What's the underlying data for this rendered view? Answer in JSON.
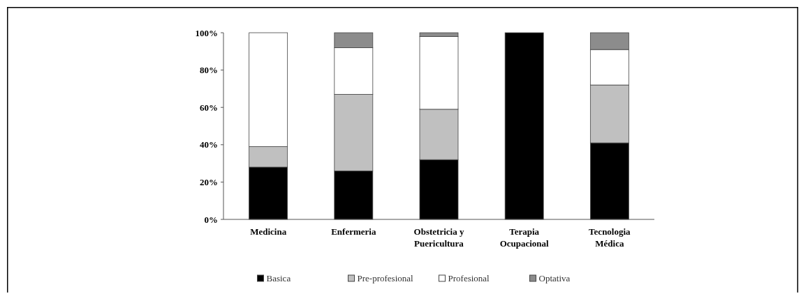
{
  "chart_data": {
    "type": "bar",
    "stacked": true,
    "categories": [
      "Medicina",
      "Enfermeria",
      "Obstetricia y Puericultura",
      "Terapia Ocupacional",
      "Tecnologia Médica"
    ],
    "series": [
      {
        "name": "Basica",
        "color": "#000000",
        "values": [
          28,
          26,
          32,
          100,
          41
        ]
      },
      {
        "name": "Pre-profesional",
        "color": "#c0c0c0",
        "values": [
          11,
          41,
          27,
          0,
          31
        ]
      },
      {
        "name": "Profesional",
        "color": "#ffffff",
        "values": [
          61,
          25,
          39,
          0,
          19
        ]
      },
      {
        "name": "Optativa",
        "color": "#8c8c8c",
        "values": [
          0,
          8,
          2,
          0,
          9
        ]
      }
    ],
    "ylim": [
      0,
      100
    ],
    "yticks": [
      {
        "value": 0,
        "label": "0%"
      },
      {
        "value": 20,
        "label": "20%"
      },
      {
        "value": 40,
        "label": "40%"
      },
      {
        "value": 60,
        "label": "60%"
      },
      {
        "value": 80,
        "label": "80%"
      },
      {
        "value": 100,
        "label": "100%"
      }
    ],
    "legend": "bottom"
  }
}
